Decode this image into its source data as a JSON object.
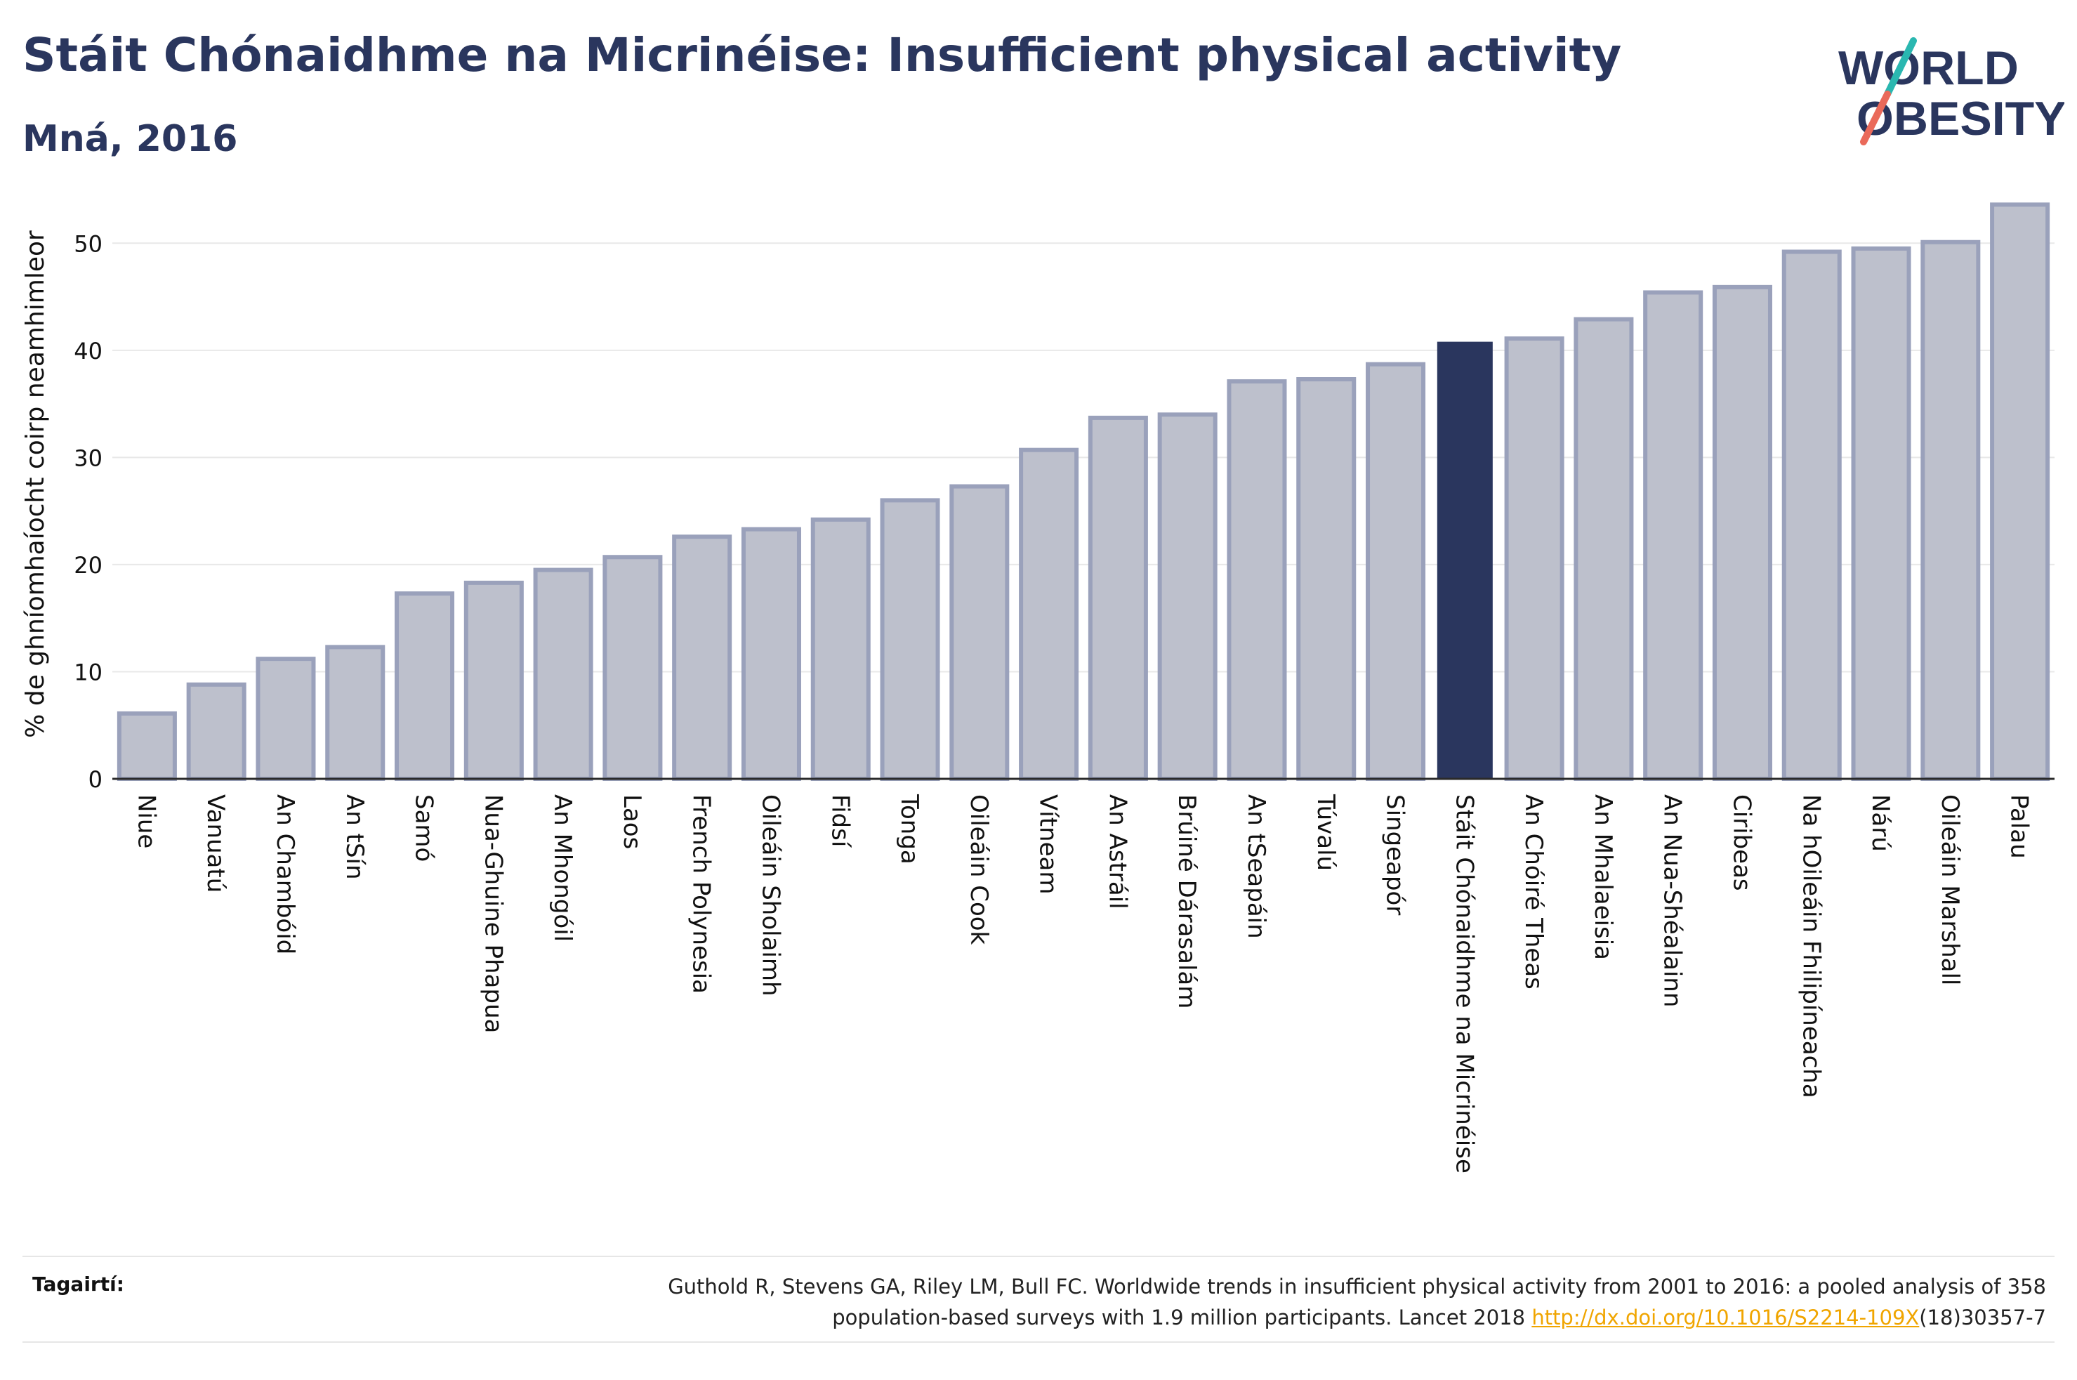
{
  "header": {
    "title": "Stáit Chónaidhme na Micrinéise: Insufficient physical activity",
    "subtitle": "Mná, 2016"
  },
  "logo": {
    "line1": "WORLD",
    "line2": "OBESITY"
  },
  "colors": {
    "highlight": "#2a365e",
    "bar": "#bdc0cc",
    "bar_stroke": "#9aa1bb",
    "grid": "#e8e8e8",
    "text": "#2a365e",
    "accent_teal": "#2ab7b0",
    "accent_red": "#ea6a5a",
    "link": "#f0a500"
  },
  "chart_data": {
    "type": "bar",
    "title": "Stáit Chónaidhme na Micrinéise: Insufficient physical activity",
    "subtitle": "Mná, 2016",
    "xlabel": "",
    "ylabel": "% de ghníomhaíocht coirp neamhimleor",
    "ylim": [
      0,
      55
    ],
    "yticks": [
      0,
      10,
      20,
      30,
      40,
      50
    ],
    "grid": true,
    "highlight": "Stáit Chónaidhme na Micrinéise",
    "categories": [
      "Niue",
      "Vanuatú",
      "An Chambóid",
      "An tSín",
      "Samó",
      "Nua-Ghuine Phapua",
      "An Mhongóil",
      "Laos",
      "French Polynesia",
      "Oileáin Sholaimh",
      "Fidsí",
      "Tonga",
      "Oileáin Cook",
      "Vítneam",
      "An Astráil",
      "Brúiné Dárasalám",
      "An tSeapáin",
      "Túvalú",
      "Singeapór",
      "Stáit Chónaidhme na Micrinéise",
      "An Chóiré Theas",
      "An Mhalaeisia",
      "An Nua-Shéalainn",
      "Ciribeas",
      "Na hOileáin Fhilipíneacha",
      "Nárú",
      "Oileáin Marshall",
      "Palau"
    ],
    "values": [
      6.1,
      8.8,
      11.2,
      12.3,
      17.3,
      18.3,
      19.5,
      20.7,
      22.6,
      23.3,
      24.2,
      26.0,
      27.3,
      30.7,
      33.7,
      34.0,
      37.1,
      37.3,
      38.7,
      40.8,
      41.1,
      42.9,
      45.4,
      45.9,
      49.2,
      49.5,
      50.1,
      53.6
    ]
  },
  "footer": {
    "refs_label": "Tagairtí:",
    "refs_text_1": "Guthold R, Stevens GA, Riley LM, Bull FC. Worldwide trends in insufficient physical activity from 2001 to 2016: a pooled analysis of 358",
    "refs_text_2": "population-based surveys with 1.9 million participants. Lancet 2018 ",
    "refs_link": "http://dx.doi.org/10.1016/S2214-109X",
    "refs_text_3": "(18)30357-7"
  }
}
